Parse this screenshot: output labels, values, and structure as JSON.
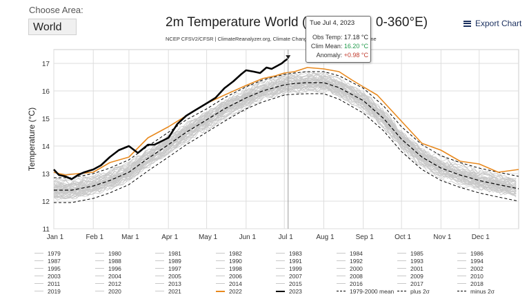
{
  "controls": {
    "choose_area_label": "Choose Area:",
    "area_value": "World",
    "export_label": "Export Chart"
  },
  "colors": {
    "year_line": "#c8c8c8",
    "y2022": "#e8891e",
    "y2023": "#000000",
    "mean": "#000000",
    "sigma": "#000000",
    "grid": "#dddddd"
  },
  "tooltip": {
    "date": "Tue Jul 4, 2023",
    "obs_label": "Obs Temp:",
    "obs_value": "17.18 °C",
    "clim_label": "Clim Mean:",
    "clim_value": "16.20 °C",
    "anom_label": "Anomaly:",
    "anom_value": "+0.98 °C"
  },
  "chart_data": {
    "type": "line",
    "title": "2m Temperature World (90°S-90°N, 0-360°E)",
    "subtitle": "NCEP CFSV2/CFSR | ClimateReanalyzer.org, Climate Change Institute, University of Maine",
    "ylabel": "Temperature (°C)",
    "ylim": [
      11,
      17.5
    ],
    "yticks": [
      11,
      12,
      13,
      14,
      15,
      16,
      17
    ],
    "xlim": [
      1,
      366
    ],
    "xticks": [
      {
        "day": 1,
        "label": "Jan 1"
      },
      {
        "day": 32,
        "label": "Feb 1"
      },
      {
        "day": 60,
        "label": "Mar 1"
      },
      {
        "day": 91,
        "label": "Apr 1"
      },
      {
        "day": 121,
        "label": "May 1"
      },
      {
        "day": 152,
        "label": "Jun 1"
      },
      {
        "day": 182,
        "label": "Jul 1"
      },
      {
        "day": 213,
        "label": "Aug 1"
      },
      {
        "day": 244,
        "label": "Sep 1"
      },
      {
        "day": 274,
        "label": "Oct 1"
      },
      {
        "day": 305,
        "label": "Nov 1"
      },
      {
        "day": 335,
        "label": "Dec 1"
      }
    ],
    "grid": true,
    "legend_position": "bottom",
    "legend": [
      "1979",
      "1980",
      "1981",
      "1982",
      "1983",
      "1984",
      "1985",
      "1986",
      "1987",
      "1988",
      "1989",
      "1990",
      "1991",
      "1992",
      "1993",
      "1994",
      "1995",
      "1996",
      "1997",
      "1998",
      "1999",
      "2000",
      "2001",
      "2002",
      "2003",
      "2004",
      "2005",
      "2006",
      "2007",
      "2008",
      "2009",
      "2010",
      "2011",
      "2012",
      "2013",
      "2014",
      "2015",
      "2016",
      "2017",
      "2018",
      "2019",
      "2020",
      "2021",
      "2022",
      "2023",
      "1979-2000 mean",
      "plus 2σ",
      "minus 2σ"
    ],
    "series": [
      {
        "name": "1979-2000 mean",
        "style": "dashed",
        "x": [
          1,
          15,
          32,
          45,
          60,
          75,
          91,
          105,
          121,
          135,
          152,
          165,
          182,
          190,
          200,
          213,
          225,
          244,
          260,
          274,
          290,
          305,
          320,
          335,
          350,
          366
        ],
        "y": [
          12.4,
          12.4,
          12.55,
          12.75,
          13.05,
          13.55,
          14.05,
          14.5,
          14.95,
          15.35,
          15.75,
          16.0,
          16.22,
          16.27,
          16.3,
          16.3,
          16.12,
          15.65,
          15.0,
          14.25,
          13.6,
          13.2,
          12.95,
          12.75,
          12.6,
          12.45
        ]
      },
      {
        "name": "plus 2σ",
        "style": "dashed",
        "x": [
          1,
          15,
          32,
          45,
          60,
          75,
          91,
          105,
          121,
          135,
          152,
          165,
          182,
          190,
          200,
          213,
          225,
          244,
          260,
          274,
          290,
          305,
          320,
          335,
          350,
          366
        ],
        "y": [
          12.85,
          12.85,
          13.0,
          13.2,
          13.5,
          14.0,
          14.5,
          14.95,
          15.35,
          15.75,
          16.15,
          16.4,
          16.6,
          16.65,
          16.7,
          16.7,
          16.55,
          16.1,
          15.45,
          14.7,
          14.05,
          13.65,
          13.4,
          13.2,
          13.05,
          12.9
        ]
      },
      {
        "name": "minus 2σ",
        "style": "dashed",
        "x": [
          1,
          15,
          32,
          45,
          60,
          75,
          91,
          105,
          121,
          135,
          152,
          165,
          182,
          190,
          200,
          213,
          225,
          244,
          260,
          274,
          290,
          305,
          320,
          335,
          350,
          366
        ],
        "y": [
          11.95,
          11.95,
          12.1,
          12.3,
          12.6,
          13.1,
          13.6,
          14.05,
          14.5,
          14.9,
          15.35,
          15.6,
          15.85,
          15.88,
          15.9,
          15.9,
          15.7,
          15.2,
          14.55,
          13.8,
          13.15,
          12.75,
          12.5,
          12.3,
          12.15,
          12.0
        ]
      },
      {
        "name": "2022",
        "x": [
          1,
          10,
          20,
          32,
          45,
          60,
          75,
          91,
          105,
          121,
          135,
          152,
          165,
          175,
          182,
          190,
          200,
          213,
          225,
          235,
          244,
          255,
          274,
          290,
          305,
          320,
          335,
          350,
          366
        ],
        "y": [
          13.05,
          12.95,
          13.0,
          13.05,
          13.4,
          13.6,
          14.3,
          14.7,
          15.1,
          15.55,
          15.85,
          16.2,
          16.45,
          16.55,
          16.65,
          16.7,
          16.85,
          16.8,
          16.7,
          16.4,
          16.15,
          15.85,
          14.9,
          14.1,
          13.85,
          13.45,
          13.35,
          13.05,
          13.15
        ]
      },
      {
        "name": "2023",
        "x": [
          1,
          5,
          10,
          15,
          20,
          25,
          32,
          38,
          45,
          52,
          60,
          67,
          75,
          80,
          91,
          98,
          105,
          112,
          121,
          128,
          135,
          142,
          148,
          152,
          158,
          163,
          168,
          172,
          176,
          180,
          182,
          185
        ],
        "y": [
          13.15,
          12.95,
          12.9,
          12.8,
          12.95,
          13.05,
          13.15,
          13.3,
          13.6,
          13.85,
          14.0,
          13.75,
          14.05,
          14.05,
          14.3,
          14.8,
          15.1,
          15.3,
          15.55,
          15.75,
          16.1,
          16.35,
          16.6,
          16.75,
          16.7,
          16.65,
          16.85,
          16.8,
          16.9,
          17.0,
          17.08,
          17.18
        ]
      }
    ],
    "cursor": {
      "day": 185,
      "value": 17.18
    }
  }
}
